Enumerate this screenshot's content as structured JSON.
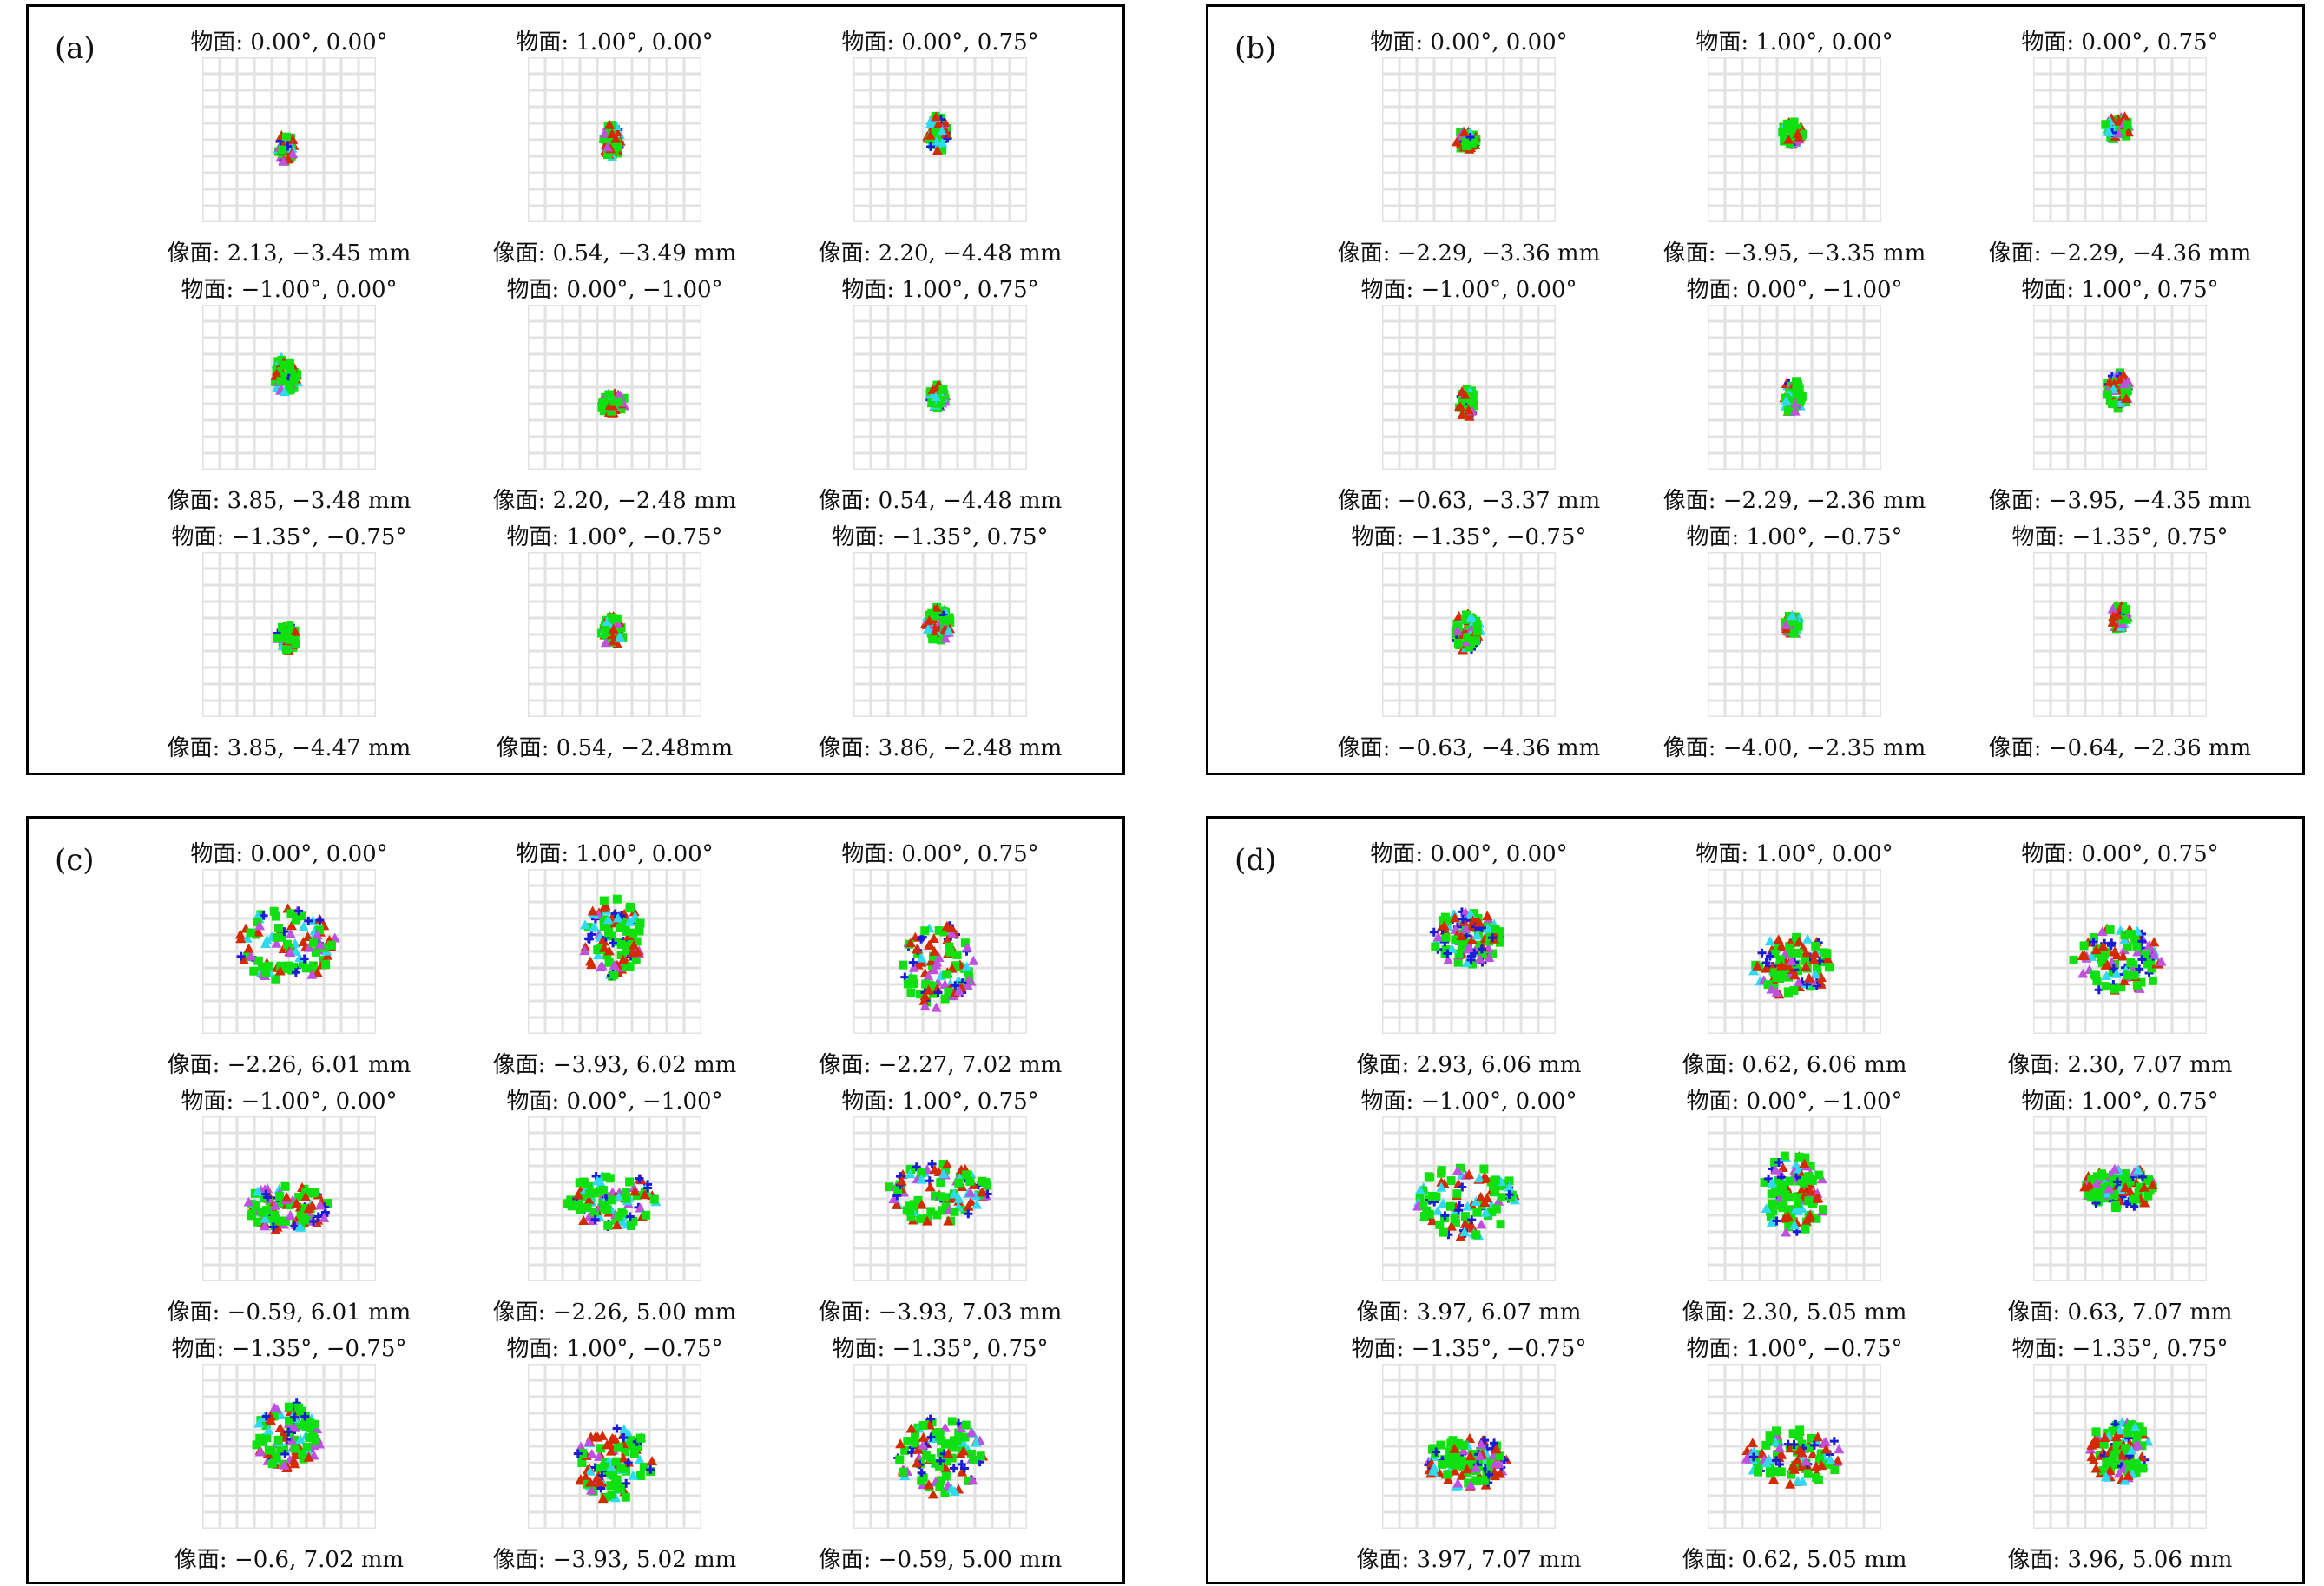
{
  "panels": [
    {
      "letter": "(a)",
      "spread": 0,
      "cells": [
        {
          "object": "物面: 0.00°, 0.00°",
          "image": "像面: 2.13, −3.45 mm"
        },
        {
          "object": "物面: 1.00°, 0.00°",
          "image": "像面: 0.54, −3.49 mm"
        },
        {
          "object": "物面: 0.00°, 0.75°",
          "image": "像面: 2.20, −4.48 mm"
        },
        {
          "object": "物面: −1.00°, 0.00°",
          "image": "像面: 3.85, −3.48 mm"
        },
        {
          "object": "物面: 0.00°, −1.00°",
          "image": "像面: 2.20, −2.48 mm"
        },
        {
          "object": "物面: 1.00°, 0.75°",
          "image": "像面: 0.54, −4.48 mm"
        },
        {
          "object": "物面: −1.35°, −0.75°",
          "image": "像面: 3.85, −4.47 mm"
        },
        {
          "object": "物面: 1.00°, −0.75°",
          "image": "像面: 0.54, −2.48mm"
        },
        {
          "object": "物面: −1.35°, 0.75°",
          "image": "像面: 3.86, −2.48 mm"
        }
      ]
    },
    {
      "letter": "(b)",
      "spread": 0,
      "cells": [
        {
          "object": "物面: 0.00°, 0.00°",
          "image": "像面: −2.29, −3.36 mm"
        },
        {
          "object": "物面: 1.00°, 0.00°",
          "image": "像面: −3.95, −3.35 mm"
        },
        {
          "object": "物面: 0.00°, 0.75°",
          "image": "像面: −2.29, −4.36 mm"
        },
        {
          "object": "物面: −1.00°, 0.00°",
          "image": "像面: −0.63, −3.37 mm"
        },
        {
          "object": "物面: 0.00°, −1.00°",
          "image": "像面: −2.29, −2.36 mm"
        },
        {
          "object": "物面: 1.00°, 0.75°",
          "image": "像面: −3.95, −4.35 mm"
        },
        {
          "object": "物面: −1.35°, −0.75°",
          "image": "像面: −0.63, −4.36 mm"
        },
        {
          "object": "物面: 1.00°, −0.75°",
          "image": "像面: −4.00, −2.35 mm"
        },
        {
          "object": "物面: −1.35°, 0.75°",
          "image": "像面: −0.64, −2.36 mm"
        }
      ]
    },
    {
      "letter": "(c)",
      "spread": 1,
      "cells": [
        {
          "object": "物面: 0.00°, 0.00°",
          "image": "像面: −2.26, 6.01 mm"
        },
        {
          "object": "物面: 1.00°, 0.00°",
          "image": "像面: −3.93, 6.02 mm"
        },
        {
          "object": "物面: 0.00°, 0.75°",
          "image": "像面: −2.27, 7.02 mm"
        },
        {
          "object": "物面: −1.00°, 0.00°",
          "image": "像面: −0.59, 6.01 mm"
        },
        {
          "object": "物面: 0.00°, −1.00°",
          "image": "像面: −2.26, 5.00 mm"
        },
        {
          "object": "物面: 1.00°, 0.75°",
          "image": "像面: −3.93, 7.03 mm"
        },
        {
          "object": "物面: −1.35°, −0.75°",
          "image": "像面: −0.6, 7.02 mm"
        },
        {
          "object": "物面: 1.00°, −0.75°",
          "image": "像面: −3.93, 5.02 mm"
        },
        {
          "object": "物面: −1.35°, 0.75°",
          "image": "像面: −0.59, 5.00 mm"
        }
      ]
    },
    {
      "letter": "(d)",
      "spread": 1,
      "cells": [
        {
          "object": "物面: 0.00°, 0.00°",
          "image": "像面: 2.93, 6.06 mm"
        },
        {
          "object": "物面: 1.00°, 0.00°",
          "image": "像面: 0.62, 6.06 mm"
        },
        {
          "object": "物面: 0.00°, 0.75°",
          "image": "像面: 2.30, 7.07 mm"
        },
        {
          "object": "物面: −1.00°, 0.00°",
          "image": "像面: 3.97, 6.07 mm"
        },
        {
          "object": "物面: 0.00°, −1.00°",
          "image": "像面: 2.30, 5.05 mm"
        },
        {
          "object": "物面: 1.00°, 0.75°",
          "image": "像面: 0.63, 7.07 mm"
        },
        {
          "object": "物面: −1.35°, −0.75°",
          "image": "像面: 3.97, 7.07 mm"
        },
        {
          "object": "物面: 1.00°, −0.75°",
          "image": "像面: 0.62, 5.05 mm"
        },
        {
          "object": "物面: −1.35°, 0.75°",
          "image": "像面: 3.96, 5.06 mm"
        }
      ]
    }
  ],
  "colors": {
    "grid": "#e2e2e2",
    "green": "#10e010",
    "red": "#d42a00",
    "blue": "#1a1ad8",
    "cyan": "#30d8f0",
    "magenta": "#c050e0"
  }
}
